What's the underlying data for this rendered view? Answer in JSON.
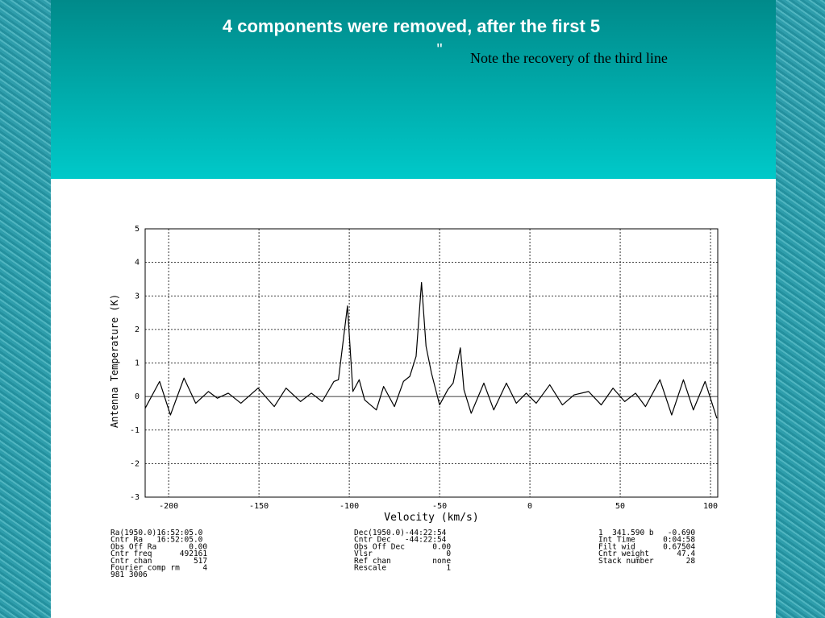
{
  "chart_data": {
    "type": "line",
    "title": "4 components were removed, after the first 5",
    "annotation_mark": "\"",
    "note": "Note the recovery of the third line",
    "x_label": "Velocity (km/s)",
    "y_label": "Antenna Temperature (K)",
    "x": [
      -213,
      -205,
      -199,
      -191.5,
      -185,
      -178,
      -173,
      -167,
      -160,
      -150.5,
      -141.5,
      -135,
      -127,
      -121,
      -115,
      -108.5,
      -106,
      -101,
      -98,
      -94.5,
      -91.5,
      -85,
      -81,
      -75,
      -70,
      -66.5,
      -63,
      -60,
      -57.5,
      -54.5,
      -50,
      -45.5,
      -42.5,
      -38.5,
      -36.5,
      -32.5,
      -25.5,
      -20,
      -13,
      -7.5,
      -2,
      3.5,
      11,
      18,
      24.5,
      32.5,
      39.5,
      46,
      52.5,
      58.5,
      64,
      72,
      78.5,
      85,
      90.5,
      97,
      103.5
    ],
    "values": [
      -0.35,
      0.45,
      -0.55,
      0.55,
      -0.2,
      0.15,
      -0.05,
      0.1,
      -0.2,
      0.25,
      -0.3,
      0.25,
      -0.15,
      0.1,
      -0.15,
      0.45,
      0.5,
      2.7,
      0.15,
      0.5,
      -0.1,
      -0.4,
      0.3,
      -0.3,
      0.45,
      0.6,
      1.2,
      3.4,
      1.5,
      0.7,
      -0.25,
      0.2,
      0.4,
      1.45,
      0.2,
      -0.5,
      0.4,
      -0.4,
      0.4,
      -0.2,
      0.1,
      -0.2,
      0.35,
      -0.25,
      0.05,
      0.15,
      -0.25,
      0.25,
      -0.15,
      0.1,
      -0.3,
      0.5,
      -0.55,
      0.5,
      -0.4,
      0.45,
      -0.65
    ],
    "color": "#000000",
    "xlim": [
      -213,
      104
    ],
    "ylim": [
      -3,
      5
    ],
    "xticks": [
      -200,
      -150,
      -100,
      -50,
      0,
      50,
      100
    ],
    "yticks": [
      -3,
      -2,
      -1,
      0,
      1,
      2,
      3,
      4,
      5
    ],
    "grid": true,
    "info": [
      [
        "Ra(1950.0)16:52:05.0",
        "Cntr Ra   16:52:05.0",
        "Obs Off Ra       0.00",
        "Cntr freq      492161",
        "Cntr chan         517",
        "Fourier comp rm     4",
        "981 3006"
      ],
      [
        "Dec(1950.0)-44:22:54",
        "Cntr Dec   -44:22:54",
        "Obs Off Dec      0.00",
        "Vlsr                0",
        "Ref chan         none",
        "Rescale             1"
      ],
      [
        "1  341.590 b   -0.690",
        "Int Time      0:04:58",
        "Filt wid      0.67504",
        "Cntr weight      47.4",
        "Stack number       28"
      ]
    ]
  }
}
